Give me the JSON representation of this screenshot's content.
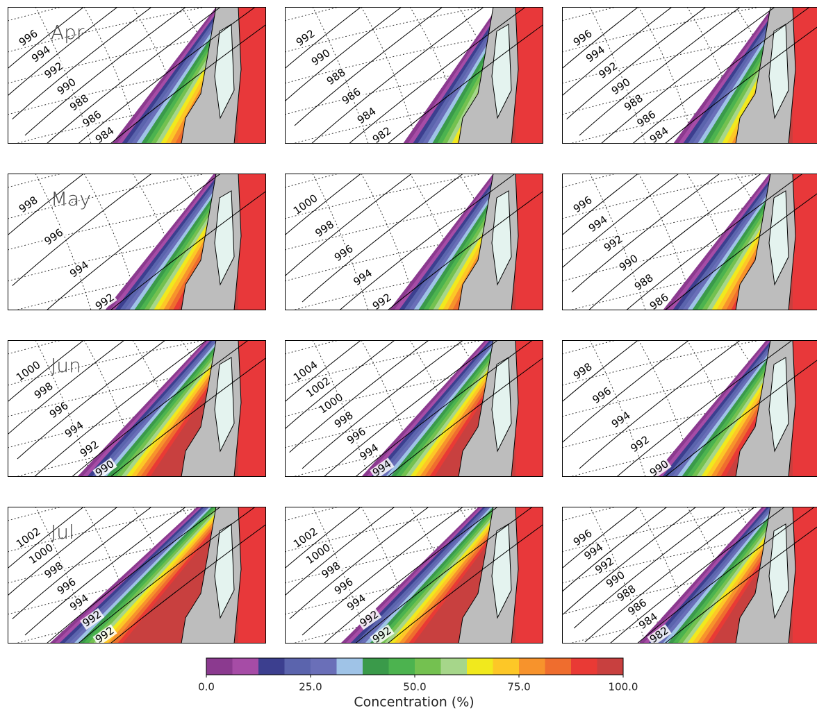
{
  "rows": [
    {
      "month": "Apr",
      "panels": [
        {
          "isobars": [
            996,
            994,
            992,
            990,
            988,
            986,
            984
          ]
        },
        {
          "isobars": [
            992,
            990,
            988,
            986,
            984,
            982
          ]
        },
        {
          "isobars": [
            996,
            994,
            992,
            990,
            988,
            986,
            984
          ]
        }
      ]
    },
    {
      "month": "May",
      "panels": [
        {
          "isobars": [
            998,
            996,
            994,
            992
          ]
        },
        {
          "isobars": [
            1000,
            998,
            996,
            994,
            992
          ]
        },
        {
          "isobars": [
            996,
            994,
            992,
            990,
            988,
            986
          ]
        }
      ]
    },
    {
      "month": "Jun",
      "panels": [
        {
          "isobars": [
            1000,
            998,
            996,
            994,
            992,
            990
          ]
        },
        {
          "isobars": [
            1004,
            1002,
            1000,
            998,
            996,
            994,
            994
          ]
        },
        {
          "isobars": [
            998,
            996,
            994,
            992,
            990
          ]
        }
      ]
    },
    {
      "month": "Jul",
      "panels": [
        {
          "isobars": [
            1002,
            1000,
            998,
            996,
            994,
            992,
            992
          ]
        },
        {
          "isobars": [
            1002,
            1000,
            998,
            996,
            994,
            992,
            992
          ]
        },
        {
          "isobars": [
            996,
            994,
            992,
            990,
            988,
            986,
            984,
            982
          ]
        }
      ]
    }
  ],
  "colorbar": {
    "title": "Concentration (%)",
    "range": [
      0,
      100
    ],
    "ticks": [
      {
        "value": 0,
        "label": "0.0"
      },
      {
        "value": 25,
        "label": "25.0"
      },
      {
        "value": 50,
        "label": "50.0"
      },
      {
        "value": 75,
        "label": "75.0"
      },
      {
        "value": 100,
        "label": "100.0"
      }
    ],
    "colors": [
      "#8b3a8f",
      "#a64ca6",
      "#3c3f8f",
      "#5b64ad",
      "#6a6fb8",
      "#9fc3e7",
      "#3a9a4a",
      "#4cb34f",
      "#74c150",
      "#a6d68a",
      "#f1e91d",
      "#fdc727",
      "#f7932c",
      "#ef6d2e",
      "#e93a35",
      "#c8403f"
    ]
  }
}
